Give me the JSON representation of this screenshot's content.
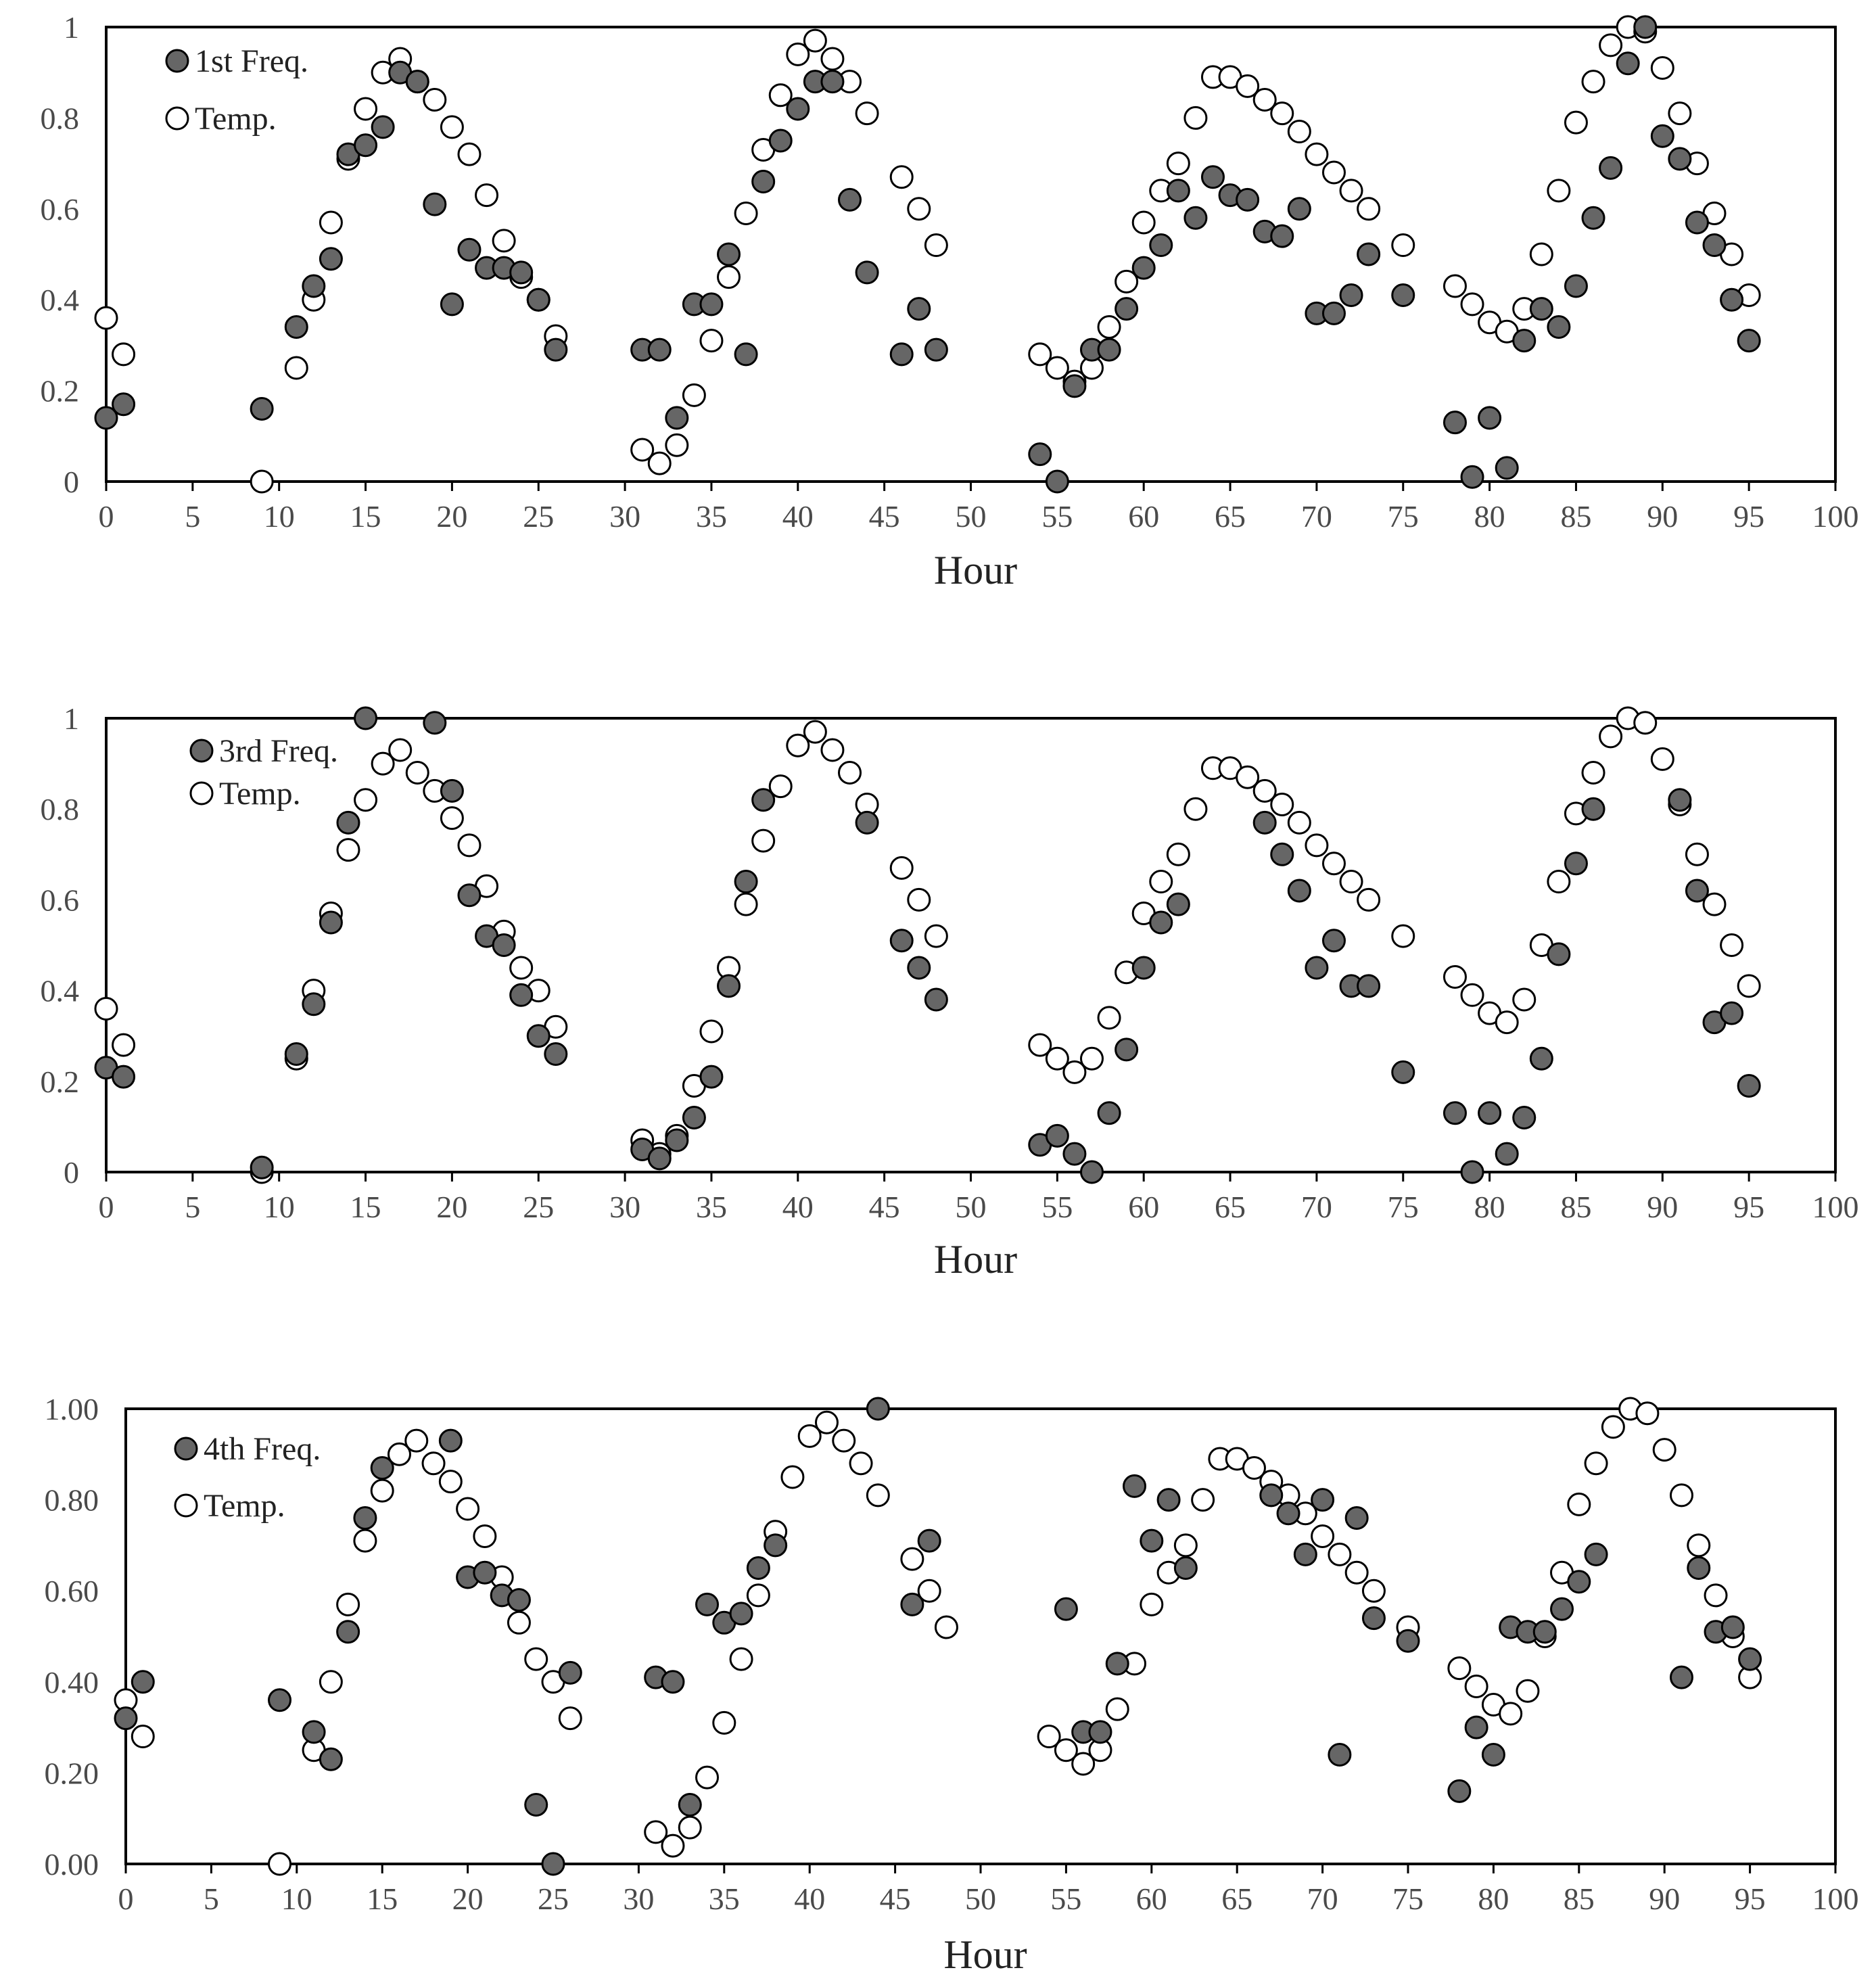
{
  "chart_data": [
    {
      "type": "scatter",
      "xlabel": "Hour",
      "ylabel": "",
      "xlim": [
        0,
        100
      ],
      "ylim": [
        0,
        1
      ],
      "x_ticks": [
        "0",
        "5",
        "10",
        "15",
        "20",
        "25",
        "30",
        "35",
        "40",
        "45",
        "50",
        "55",
        "60",
        "65",
        "70",
        "75",
        "80",
        "85",
        "90",
        "95",
        "100"
      ],
      "y_ticks": [
        "0",
        "0.2",
        "0.4",
        "0.6",
        "0.8",
        "1"
      ],
      "legend_position": "top-left",
      "series": [
        {
          "name": "1st Freq.",
          "marker": "filled",
          "x": [
            0,
            1,
            9,
            11,
            12,
            13,
            14,
            15,
            16,
            17,
            18,
            19,
            20,
            21,
            22,
            23,
            24,
            25,
            26,
            31,
            32,
            33,
            34,
            35,
            36,
            37,
            38,
            39,
            40,
            41,
            42,
            43,
            44,
            46,
            47,
            48,
            54,
            55,
            56,
            57,
            58,
            59,
            60,
            61,
            62,
            63,
            64,
            65,
            66,
            67,
            68,
            69,
            70,
            71,
            72,
            73,
            75,
            78,
            79,
            80,
            81,
            82,
            83,
            84,
            85,
            86,
            87,
            88,
            89,
            90,
            91,
            92,
            93,
            94,
            95
          ],
          "y": [
            0.14,
            0.17,
            0.16,
            0.34,
            0.43,
            0.49,
            0.72,
            0.74,
            0.78,
            0.9,
            0.88,
            0.61,
            0.39,
            0.51,
            0.47,
            0.47,
            0.46,
            0.4,
            0.29,
            0.29,
            0.29,
            0.14,
            0.39,
            0.39,
            0.5,
            0.28,
            0.66,
            0.75,
            0.82,
            0.88,
            0.88,
            0.62,
            0.46,
            0.28,
            0.38,
            0.29,
            0.06,
            0.0,
            0.21,
            0.29,
            0.29,
            0.38,
            0.47,
            0.52,
            0.64,
            0.58,
            0.67,
            0.63,
            0.62,
            0.55,
            0.54,
            0.6,
            0.37,
            0.37,
            0.41,
            0.5,
            0.41,
            0.13,
            0.01,
            0.14,
            0.03,
            0.31,
            0.38,
            0.34,
            0.43,
            0.58,
            0.69,
            0.92,
            1.0,
            0.76,
            0.71,
            0.57,
            0.52,
            0.4,
            0.31
          ]
        },
        {
          "name": "Temp.",
          "marker": "open",
          "x": [
            0,
            1,
            9,
            11,
            12,
            13,
            14,
            15,
            16,
            17,
            18,
            19,
            20,
            21,
            22,
            23,
            24,
            25,
            26,
            31,
            32,
            33,
            34,
            35,
            36,
            37,
            38,
            39,
            40,
            41,
            42,
            43,
            44,
            46,
            47,
            48,
            54,
            55,
            56,
            57,
            58,
            59,
            60,
            61,
            62,
            63,
            64,
            65,
            66,
            67,
            68,
            69,
            70,
            71,
            72,
            73,
            75,
            78,
            79,
            80,
            81,
            82,
            83,
            84,
            85,
            86,
            87,
            88,
            89,
            90,
            91,
            92,
            93,
            94,
            95
          ],
          "y": [
            0.36,
            0.28,
            0.0,
            0.25,
            0.4,
            0.57,
            0.71,
            0.82,
            0.9,
            0.93,
            0.88,
            0.84,
            0.78,
            0.72,
            0.63,
            0.53,
            0.45,
            0.4,
            0.32,
            0.07,
            0.04,
            0.08,
            0.19,
            0.31,
            0.45,
            0.59,
            0.73,
            0.85,
            0.94,
            0.97,
            0.93,
            0.88,
            0.81,
            0.67,
            0.6,
            0.52,
            0.28,
            0.25,
            0.22,
            0.25,
            0.34,
            0.44,
            0.57,
            0.64,
            0.7,
            0.8,
            0.89,
            0.89,
            0.87,
            0.84,
            0.81,
            0.77,
            0.72,
            0.68,
            0.64,
            0.6,
            0.52,
            0.43,
            0.39,
            0.35,
            0.33,
            0.38,
            0.5,
            0.64,
            0.79,
            0.88,
            0.96,
            1.0,
            0.99,
            0.91,
            0.81,
            0.7,
            0.59,
            0.5,
            0.41
          ]
        }
      ]
    },
    {
      "type": "scatter",
      "xlabel": "Hour",
      "ylabel": "",
      "xlim": [
        0,
        100
      ],
      "ylim": [
        0,
        1
      ],
      "x_ticks": [
        "0",
        "5",
        "10",
        "15",
        "20",
        "25",
        "30",
        "35",
        "40",
        "45",
        "50",
        "55",
        "60",
        "65",
        "70",
        "75",
        "80",
        "85",
        "90",
        "95",
        "100"
      ],
      "y_ticks": [
        "0",
        "0.2",
        "0.4",
        "0.6",
        "0.8",
        "1"
      ],
      "legend_position": "top-left",
      "series": [
        {
          "name": "3rd Freq.",
          "marker": "filled",
          "x": [
            0,
            1,
            9,
            11,
            12,
            13,
            14,
            15,
            19,
            20,
            21,
            22,
            23,
            24,
            25,
            26,
            31,
            32,
            33,
            34,
            35,
            36,
            37,
            38,
            44,
            46,
            47,
            48,
            54,
            55,
            56,
            57,
            58,
            59,
            60,
            61,
            62,
            67,
            68,
            69,
            70,
            71,
            72,
            73,
            75,
            78,
            79,
            80,
            81,
            82,
            83,
            84,
            85,
            86,
            91,
            92,
            93,
            94,
            95
          ],
          "y": [
            0.23,
            0.21,
            0.01,
            0.26,
            0.37,
            0.55,
            0.77,
            1.0,
            0.99,
            0.84,
            0.61,
            0.52,
            0.5,
            0.39,
            0.3,
            0.26,
            0.05,
            0.03,
            0.07,
            0.12,
            0.21,
            0.41,
            0.64,
            0.82,
            0.77,
            0.51,
            0.45,
            0.38,
            0.06,
            0.08,
            0.04,
            0.0,
            0.13,
            0.27,
            0.45,
            0.55,
            0.59,
            0.77,
            0.7,
            0.62,
            0.45,
            0.51,
            0.41,
            0.41,
            0.22,
            0.13,
            0.0,
            0.13,
            0.04,
            0.12,
            0.25,
            0.48,
            0.68,
            0.8,
            0.82,
            0.62,
            0.33,
            0.35,
            0.19
          ]
        },
        {
          "name": "Temp.",
          "marker": "open",
          "x": [
            0,
            1,
            9,
            11,
            12,
            13,
            14,
            15,
            16,
            17,
            18,
            19,
            20,
            21,
            22,
            23,
            24,
            25,
            26,
            31,
            32,
            33,
            34,
            35,
            36,
            37,
            38,
            39,
            40,
            41,
            42,
            43,
            44,
            46,
            47,
            48,
            54,
            55,
            56,
            57,
            58,
            59,
            60,
            61,
            62,
            63,
            64,
            65,
            66,
            67,
            68,
            69,
            70,
            71,
            72,
            73,
            75,
            78,
            79,
            80,
            81,
            82,
            83,
            84,
            85,
            86,
            87,
            88,
            89,
            90,
            91,
            92,
            93,
            94,
            95
          ],
          "y": [
            0.36,
            0.28,
            0.0,
            0.25,
            0.4,
            0.57,
            0.71,
            0.82,
            0.9,
            0.93,
            0.88,
            0.84,
            0.78,
            0.72,
            0.63,
            0.53,
            0.45,
            0.4,
            0.32,
            0.07,
            0.04,
            0.08,
            0.19,
            0.31,
            0.45,
            0.59,
            0.73,
            0.85,
            0.94,
            0.97,
            0.93,
            0.88,
            0.81,
            0.67,
            0.6,
            0.52,
            0.28,
            0.25,
            0.22,
            0.25,
            0.34,
            0.44,
            0.57,
            0.64,
            0.7,
            0.8,
            0.89,
            0.89,
            0.87,
            0.84,
            0.81,
            0.77,
            0.72,
            0.68,
            0.64,
            0.6,
            0.52,
            0.43,
            0.39,
            0.35,
            0.33,
            0.38,
            0.5,
            0.64,
            0.79,
            0.88,
            0.96,
            1.0,
            0.99,
            0.91,
            0.81,
            0.7,
            0.59,
            0.5,
            0.41
          ]
        }
      ]
    },
    {
      "type": "scatter",
      "xlabel": "Hour",
      "ylabel": "",
      "xlim": [
        0,
        100
      ],
      "ylim": [
        0,
        1
      ],
      "x_ticks": [
        "0",
        "5",
        "10",
        "15",
        "20",
        "25",
        "30",
        "35",
        "40",
        "45",
        "50",
        "55",
        "60",
        "65",
        "70",
        "75",
        "80",
        "85",
        "90",
        "95",
        "100"
      ],
      "y_ticks": [
        "0.00",
        "0.20",
        "0.40",
        "0.60",
        "0.80",
        "1.00"
      ],
      "legend_position": "top-left",
      "series": [
        {
          "name": "4th Freq.",
          "marker": "filled",
          "x": [
            0,
            1,
            9,
            11,
            12,
            13,
            14,
            15,
            19,
            20,
            21,
            22,
            23,
            24,
            25,
            26,
            31,
            32,
            33,
            34,
            35,
            36,
            37,
            38,
            44,
            46,
            47,
            55,
            56,
            57,
            58,
            59,
            60,
            61,
            62,
            67,
            68,
            69,
            70,
            71,
            72,
            73,
            75,
            78,
            79,
            80,
            81,
            82,
            83,
            84,
            85,
            86,
            91,
            92,
            93,
            94,
            95
          ],
          "y": [
            0.32,
            0.4,
            0.36,
            0.29,
            0.23,
            0.51,
            0.76,
            0.87,
            0.93,
            0.63,
            0.64,
            0.59,
            0.58,
            0.13,
            0.0,
            0.42,
            0.41,
            0.4,
            0.13,
            0.57,
            0.53,
            0.55,
            0.65,
            0.7,
            1.0,
            0.57,
            0.71,
            0.56,
            0.29,
            0.29,
            0.44,
            0.83,
            0.71,
            0.8,
            0.65,
            0.81,
            0.77,
            0.68,
            0.8,
            0.24,
            0.76,
            0.54,
            0.49,
            0.16,
            0.3,
            0.24,
            0.52,
            0.51,
            0.51,
            0.56,
            0.62,
            0.68,
            0.41,
            0.65,
            0.51,
            0.52,
            0.45
          ]
        },
        {
          "name": "Temp.",
          "marker": "open",
          "x": [
            0,
            1,
            9,
            11,
            12,
            13,
            14,
            15,
            16,
            17,
            18,
            19,
            20,
            21,
            22,
            23,
            24,
            25,
            26,
            31,
            32,
            33,
            34,
            35,
            36,
            37,
            38,
            39,
            40,
            41,
            42,
            43,
            44,
            46,
            47,
            48,
            54,
            55,
            56,
            57,
            58,
            59,
            60,
            61,
            62,
            63,
            64,
            65,
            66,
            67,
            68,
            69,
            70,
            71,
            72,
            73,
            75,
            78,
            79,
            80,
            81,
            82,
            83,
            84,
            85,
            86,
            87,
            88,
            89,
            90,
            91,
            92,
            93,
            94,
            95
          ],
          "y": [
            0.36,
            0.28,
            0.0,
            0.25,
            0.4,
            0.57,
            0.71,
            0.82,
            0.9,
            0.93,
            0.88,
            0.84,
            0.78,
            0.72,
            0.63,
            0.53,
            0.45,
            0.4,
            0.32,
            0.07,
            0.04,
            0.08,
            0.19,
            0.31,
            0.45,
            0.59,
            0.73,
            0.85,
            0.94,
            0.97,
            0.93,
            0.88,
            0.81,
            0.67,
            0.6,
            0.52,
            0.28,
            0.25,
            0.22,
            0.25,
            0.34,
            0.44,
            0.57,
            0.64,
            0.7,
            0.8,
            0.89,
            0.89,
            0.87,
            0.84,
            0.81,
            0.77,
            0.72,
            0.68,
            0.64,
            0.6,
            0.52,
            0.43,
            0.39,
            0.35,
            0.33,
            0.38,
            0.5,
            0.64,
            0.79,
            0.88,
            0.96,
            1.0,
            0.99,
            0.91,
            0.81,
            0.7,
            0.59,
            0.5,
            0.41
          ]
        }
      ]
    }
  ]
}
